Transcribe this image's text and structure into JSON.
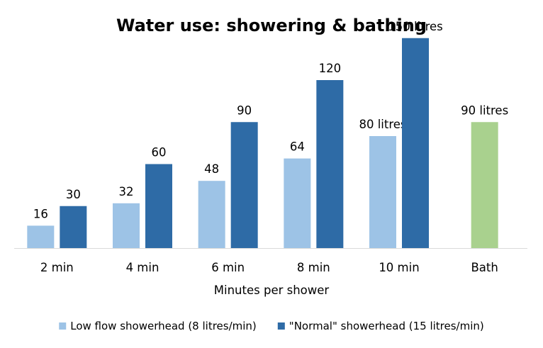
{
  "chart_data": {
    "type": "bar",
    "title": "Water use: showering & bathing",
    "xlabel": "Minutes per shower",
    "ylabel": "",
    "ylim": [
      0,
      160
    ],
    "grid": false,
    "legend_position": "bottom",
    "categories": [
      "2 min",
      "4 min",
      "6 min",
      "8 min",
      "10 min",
      "Bath"
    ],
    "series": [
      {
        "name": "Low flow showerhead (8 litres/min)",
        "color": "#9DC3E6",
        "values": [
          16,
          32,
          48,
          64,
          80,
          null
        ],
        "labels": [
          "16",
          "32",
          "48",
          "64",
          "80 litres",
          ""
        ]
      },
      {
        "name": "\"Normal\" showerhead (15 litres/min)",
        "color": "#2E6BA6",
        "values": [
          30,
          60,
          90,
          120,
          150,
          null
        ],
        "labels": [
          "30",
          "60",
          "90",
          "120",
          "150 litres",
          ""
        ]
      },
      {
        "name": "",
        "color": "#A9D18E",
        "values": [
          null,
          null,
          null,
          null,
          null,
          90
        ],
        "labels": [
          "",
          "",
          "",
          "",
          "",
          "90 litres"
        ]
      }
    ],
    "legend": [
      {
        "label": "Low flow showerhead (8 litres/min)",
        "color": "#9DC3E6"
      },
      {
        "label": "\"Normal\" showerhead (15 litres/min)",
        "color": "#2E6BA6"
      }
    ]
  }
}
